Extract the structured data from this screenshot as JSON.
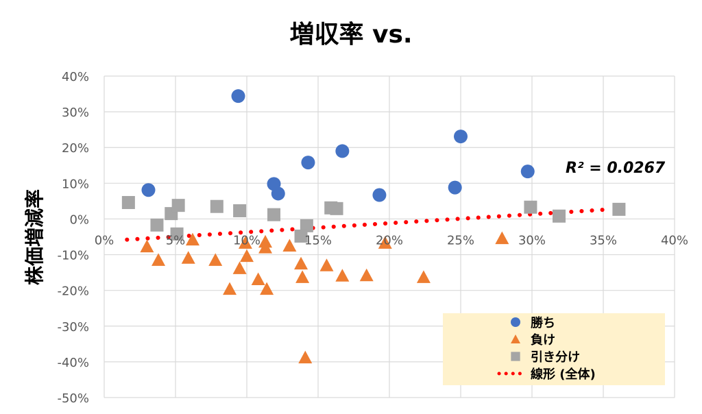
{
  "chart_data": {
    "type": "scatter",
    "title": "増収率 vs.",
    "xlabel": "",
    "ylabel": "株価増減率",
    "xlim": [
      0,
      40
    ],
    "ylim": [
      -50,
      40
    ],
    "x_ticks": [
      "0%",
      "5%",
      "10%",
      "15%",
      "20%",
      "25%",
      "30%",
      "35%",
      "40%"
    ],
    "y_ticks": [
      "40%",
      "30%",
      "20%",
      "10%",
      "0%",
      "-10%",
      "-20%",
      "-30%",
      "-40%",
      "-50%"
    ],
    "grid": true,
    "legend_placement": "bottom-right",
    "annotation": "R² = 0.0267",
    "series": [
      {
        "name": "勝ち",
        "marker": "circle",
        "color": "#4472C4",
        "points": [
          [
            3.1,
            8.1
          ],
          [
            9.4,
            34.4
          ],
          [
            11.9,
            9.8
          ],
          [
            12.2,
            7.1
          ],
          [
            14.3,
            15.8
          ],
          [
            16.7,
            19.0
          ],
          [
            19.3,
            6.7
          ],
          [
            24.6,
            8.8
          ],
          [
            25.0,
            23.1
          ],
          [
            29.7,
            13.3
          ]
        ]
      },
      {
        "name": "負け",
        "marker": "triangle",
        "color": "#ED7D31",
        "points": [
          [
            3.0,
            -7.7
          ],
          [
            3.8,
            -11.5
          ],
          [
            6.2,
            -5.8
          ],
          [
            5.9,
            -10.9
          ],
          [
            7.8,
            -11.5
          ],
          [
            9.9,
            -6.7
          ],
          [
            10.0,
            -10.4
          ],
          [
            9.5,
            -13.8
          ],
          [
            8.8,
            -19.6
          ],
          [
            11.3,
            -6.4
          ],
          [
            11.3,
            -8.0
          ],
          [
            10.8,
            -16.9
          ],
          [
            11.4,
            -19.6
          ],
          [
            13.0,
            -7.5
          ],
          [
            13.8,
            -12.5
          ],
          [
            13.9,
            -16.3
          ],
          [
            14.1,
            -38.8
          ],
          [
            15.6,
            -13.0
          ],
          [
            16.7,
            -15.9
          ],
          [
            18.4,
            -15.8
          ],
          [
            19.7,
            -6.7
          ],
          [
            22.4,
            -16.3
          ],
          [
            27.9,
            -5.4
          ]
        ]
      },
      {
        "name": "引き分け",
        "marker": "square",
        "color": "#A5A5A5",
        "points": [
          [
            1.7,
            4.6
          ],
          [
            3.7,
            -1.7
          ],
          [
            4.7,
            1.5
          ],
          [
            5.2,
            3.8
          ],
          [
            5.1,
            -4.2
          ],
          [
            7.9,
            3.5
          ],
          [
            9.5,
            2.3
          ],
          [
            11.9,
            1.2
          ],
          [
            14.2,
            -1.9
          ],
          [
            13.8,
            -4.8
          ],
          [
            15.9,
            3.1
          ],
          [
            16.3,
            2.9
          ],
          [
            29.9,
            3.3
          ],
          [
            31.9,
            0.8
          ],
          [
            36.1,
            2.7
          ]
        ]
      }
    ],
    "trendline": {
      "name": "線形 (全体)",
      "color": "#FF0000",
      "style": "dotted",
      "x": [
        1.6,
        35.5
      ],
      "y": [
        -5.8,
        2.7
      ]
    }
  }
}
